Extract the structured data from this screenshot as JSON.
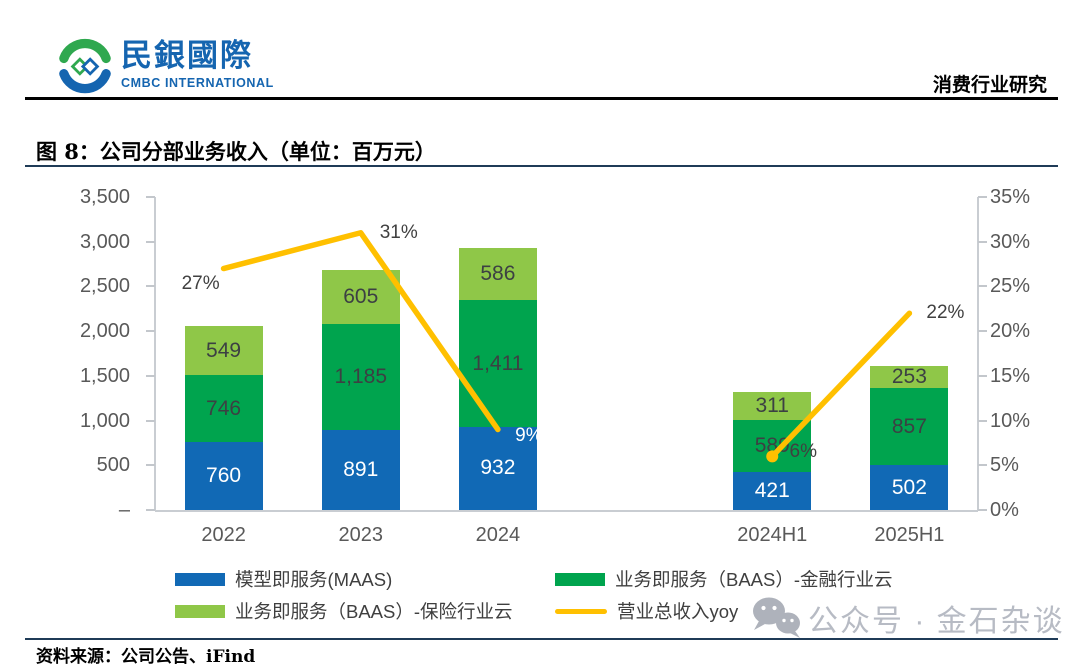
{
  "header": {
    "logo": {
      "brand_cn": "民銀國際",
      "brand_en": "CMBC INTERNATIONAL",
      "brand_color": "#1565B0",
      "mark_green": "#2FA84F",
      "mark_blue": "#1565B0"
    },
    "section_label": "消费行业研究",
    "rule_color": "#000000"
  },
  "figure": {
    "title": "图 8：公司分部业务收入（单位：百万元）",
    "rule_color": "#1F3B57",
    "source": "资料来源：公司公告、iFind"
  },
  "watermark": {
    "text": "公众号 · 金石杂谈",
    "color": "#B7BBC4",
    "icon_color": "#AEB2BB"
  },
  "chart_data": {
    "type": "bar",
    "subtype": "stacked-bars-with-line-overlay",
    "title": "公司分部业务收入（单位：百万元）",
    "categories": [
      "2022",
      "2023",
      "2024",
      "2024H1",
      "2025H1"
    ],
    "category_gap_after_index": 2,
    "series": [
      {
        "key": "maas",
        "name": "模型即服务(MAAS)",
        "type": "bar",
        "color": "#1169B5",
        "values": [
          760,
          891,
          932,
          421,
          502
        ],
        "value_labels": [
          "760",
          "891",
          "932",
          "421",
          "502"
        ],
        "label_color": "#FFFFFF"
      },
      {
        "key": "baas-finance",
        "name": "业务即服务（BAAS）-金融行业云",
        "type": "bar",
        "color": "#00A44E",
        "values": [
          746,
          1185,
          1411,
          589,
          857
        ],
        "value_labels": [
          "746",
          "1,185",
          "1,411",
          "589",
          "857"
        ],
        "label_color": "#3C4043"
      },
      {
        "key": "baas-insurance",
        "name": "业务即服务（BAAS）-保险行业云",
        "type": "bar",
        "color": "#8FC748",
        "values": [
          549,
          605,
          586,
          311,
          253
        ],
        "value_labels": [
          "549",
          "605",
          "586",
          "311",
          "253"
        ],
        "label_color": "#3C4043"
      },
      {
        "key": "yoy",
        "name": "营业总收入yoy",
        "type": "line",
        "color": "#FFC000",
        "values_pct": [
          27,
          31,
          9,
          6,
          22
        ],
        "point_labels": [
          "27%",
          "31%",
          "9%",
          "6%",
          "22%"
        ],
        "point_label_colors": [
          "#404040",
          "#404040",
          "#FFFFFF",
          "#404040",
          "#404040"
        ],
        "segments": [
          [
            0,
            1,
            2
          ],
          [
            3,
            4
          ]
        ],
        "marker_at_index": 3
      }
    ],
    "left_axis": {
      "min": 0,
      "max": 3500,
      "tick_values": [
        3500,
        3000,
        2500,
        2000,
        1500,
        1000,
        500,
        0
      ],
      "tick_labels": [
        "3,500",
        "3,000",
        "2,500",
        "2,000",
        "1,500",
        "1,000",
        "500",
        "–"
      ],
      "color": "#595959"
    },
    "right_axis": {
      "min": 0,
      "max": 35,
      "tick_values": [
        35,
        30,
        25,
        20,
        15,
        10,
        5,
        0
      ],
      "tick_labels": [
        "35%",
        "30%",
        "25%",
        "20%",
        "15%",
        "10%",
        "5%",
        "0%"
      ],
      "color": "#595959"
    },
    "legend": [
      {
        "label": "模型即服务(MAAS)",
        "swatch": "rect",
        "color": "#1169B5"
      },
      {
        "label": "业务即服务（BAAS）-金融行业云",
        "swatch": "rect",
        "color": "#00A44E"
      },
      {
        "label": "业务即服务（BAAS）-保险行业云",
        "swatch": "rect",
        "color": "#8FC748"
      },
      {
        "label": "营业总收入yoy",
        "swatch": "line",
        "color": "#FFC000"
      }
    ],
    "grid": false,
    "plot_background": "#FFFFFF"
  }
}
